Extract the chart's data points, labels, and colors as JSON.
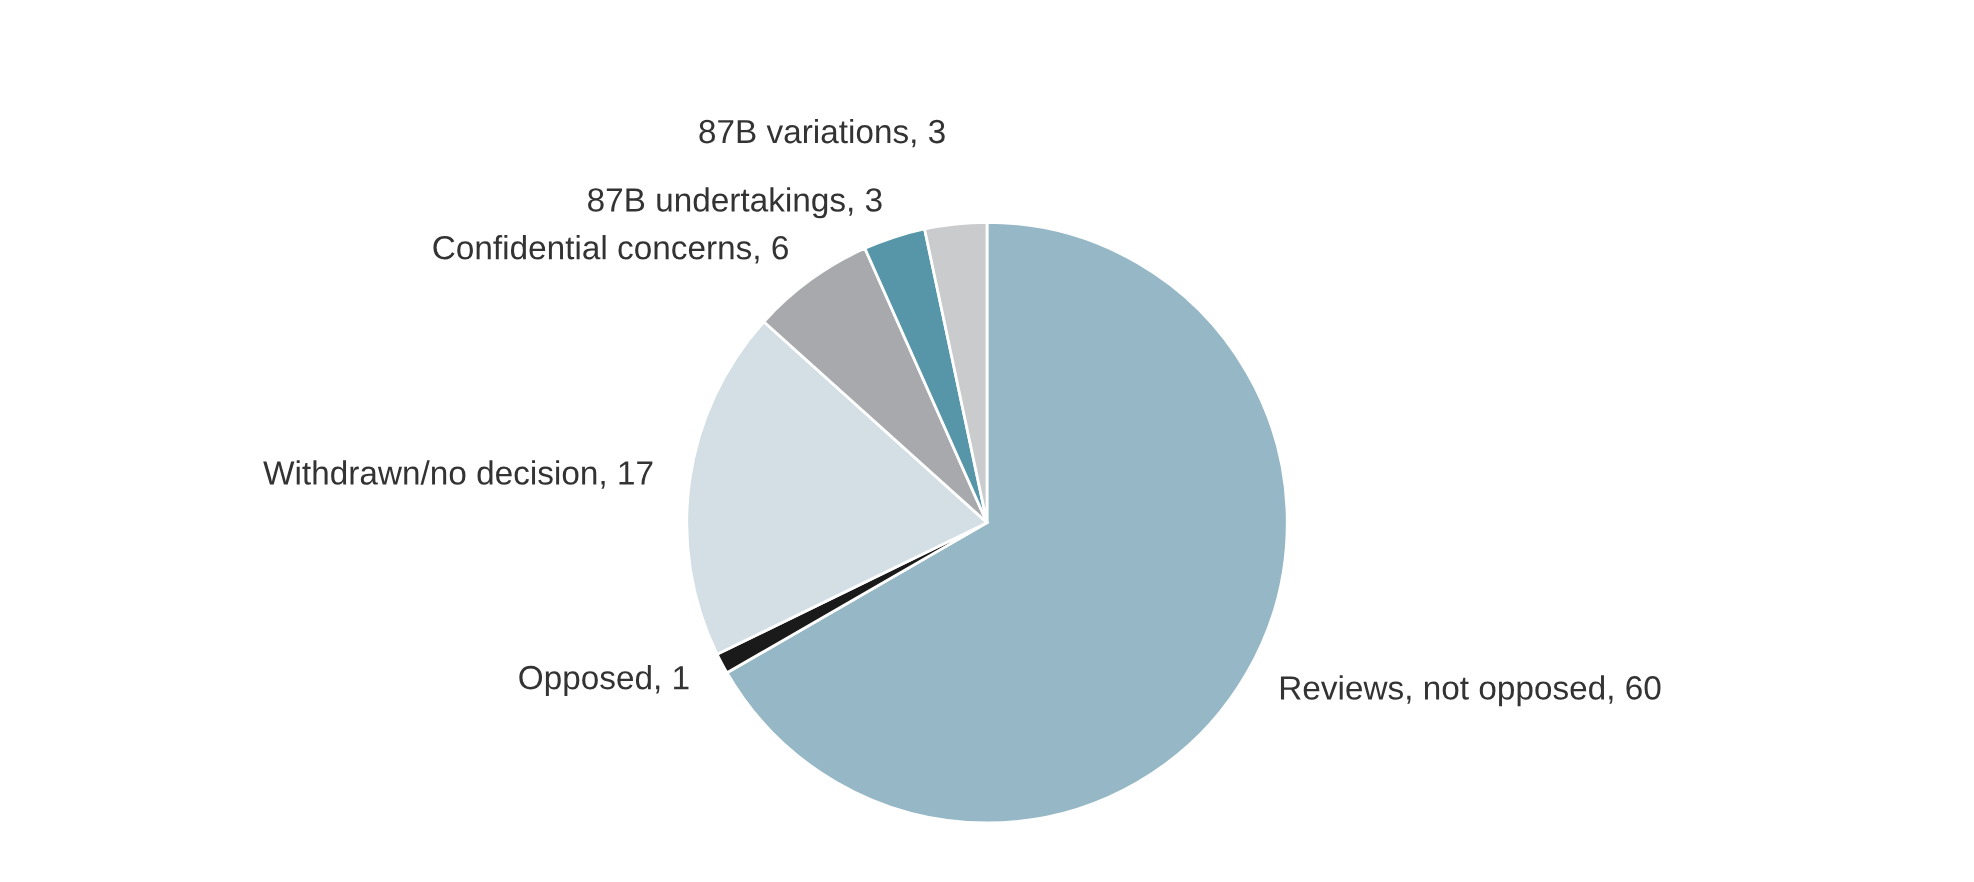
{
  "chart_data": {
    "type": "pie",
    "categories": [
      "Reviews, not opposed, 60",
      "Opposed, 1",
      "Withdrawn/no decision, 17",
      "Confidential concerns, 6",
      "87B undertakings, 3",
      "87B variations, 3"
    ],
    "values": [
      60,
      1,
      17,
      6,
      3,
      3
    ],
    "colors": [
      "#96b7c6",
      "#1a1a1a",
      "#d3dfe5",
      "#a7a9ac",
      "#5796a9",
      "#c9cbcd"
    ]
  }
}
